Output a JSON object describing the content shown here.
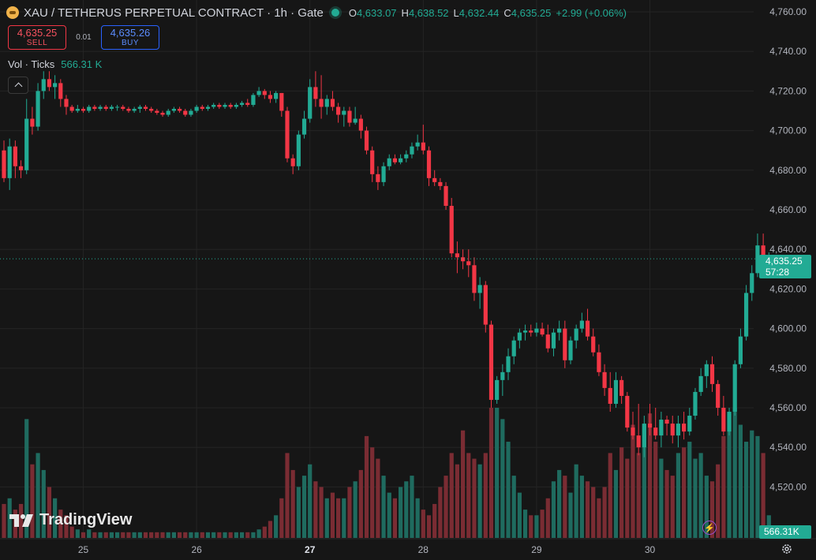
{
  "header": {
    "title": "XAU / TETHERUS PERPETUAL CONTRACT · 1h · Gate",
    "symbol_icon": "gold-coin-icon",
    "status_icon": "market-open-dot-icon",
    "ohlc": {
      "o_key": "O",
      "o": "4,633.07",
      "h_key": "H",
      "h": "4,638.52",
      "l_key": "L",
      "l": "4,632.44",
      "c_key": "C",
      "c": "4,635.25",
      "change": "+2.99 (+0.06%)"
    }
  },
  "trade": {
    "sell_price": "4,635.25",
    "sell_label": "SELL",
    "spread": "0.01",
    "buy_price": "4,635.26",
    "buy_label": "BUY"
  },
  "volume_legend": {
    "label": "Vol · Ticks",
    "value": "566.31 K"
  },
  "price_axis": {
    "current_price": "4,635.25",
    "countdown": "57:28",
    "volume_badge": "566.31K"
  },
  "watermark": "TradingView",
  "colors": {
    "up": "#22ab94",
    "down": "#f23645",
    "background": "#161616",
    "grid": "#242424"
  },
  "icons": {
    "settings": "gear-icon",
    "alerts": "lightning-icon",
    "collapse": "chevron-up-icon"
  },
  "chart_data": {
    "type": "candlestick",
    "title": "XAU / TETHERUS PERPETUAL CONTRACT · 1h · Gate",
    "ylim": [
      4505,
      4765
    ],
    "y_ticks": [
      "4,520.00",
      "4,540.00",
      "4,560.00",
      "4,580.00",
      "4,600.00",
      "4,620.00",
      "4,640.00",
      "4,660.00",
      "4,680.00",
      "4,700.00",
      "4,720.00",
      "4,740.00",
      "4,760.00"
    ],
    "y_tick_values": [
      4520,
      4540,
      4560,
      4580,
      4600,
      4620,
      4640,
      4660,
      4680,
      4700,
      4720,
      4740,
      4760
    ],
    "x_ticks": [
      {
        "label": "25",
        "index": 14,
        "bold": false
      },
      {
        "label": "26",
        "index": 34,
        "bold": false
      },
      {
        "label": "27",
        "index": 54,
        "bold": true
      },
      {
        "label": "28",
        "index": 74,
        "bold": false
      },
      {
        "label": "29",
        "index": 94,
        "bold": false
      },
      {
        "label": "30",
        "index": 114,
        "bold": false
      }
    ],
    "candles": [
      [
        4690,
        4695,
        4674,
        4676
      ],
      [
        4676,
        4696,
        4670,
        4692
      ],
      [
        4692,
        4695,
        4676,
        4682
      ],
      [
        4682,
        4685,
        4676,
        4680
      ],
      [
        4680,
        4716,
        4678,
        4706
      ],
      [
        4706,
        4712,
        4698,
        4702
      ],
      [
        4702,
        4724,
        4700,
        4720
      ],
      [
        4720,
        4730,
        4716,
        4726
      ],
      [
        4726,
        4730,
        4720,
        4722
      ],
      [
        4722,
        4728,
        4716,
        4724
      ],
      [
        4724,
        4726,
        4712,
        4716
      ],
      [
        4716,
        4718,
        4708,
        4712
      ],
      [
        4712,
        4713,
        4709,
        4710
      ],
      [
        4710,
        4713,
        4709,
        4711
      ],
      [
        4711,
        4712,
        4709,
        4710
      ],
      [
        4710,
        4713,
        4709,
        4712
      ],
      [
        4712,
        4713,
        4710,
        4711
      ],
      [
        4711,
        4713,
        4710,
        4712
      ],
      [
        4712,
        4713,
        4710,
        4711
      ],
      [
        4711,
        4713,
        4710,
        4712
      ],
      [
        4712,
        4713,
        4710,
        4712
      ],
      [
        4712,
        4713,
        4710,
        4711
      ],
      [
        4711,
        4712,
        4709,
        4710
      ],
      [
        4710,
        4712,
        4709,
        4711
      ],
      [
        4711,
        4713,
        4709,
        4712
      ],
      [
        4712,
        4713,
        4710,
        4711
      ],
      [
        4711,
        4712,
        4709,
        4710
      ],
      [
        4710,
        4711,
        4708,
        4709
      ],
      [
        4709,
        4710,
        4707,
        4708
      ],
      [
        4708,
        4711,
        4707,
        4710
      ],
      [
        4710,
        4712,
        4709,
        4711
      ],
      [
        4711,
        4712,
        4709,
        4710
      ],
      [
        4710,
        4711,
        4707,
        4708
      ],
      [
        4708,
        4711,
        4707,
        4710
      ],
      [
        4710,
        4713,
        4709,
        4712
      ],
      [
        4712,
        4713,
        4710,
        4711
      ],
      [
        4711,
        4713,
        4710,
        4712
      ],
      [
        4712,
        4714,
        4711,
        4713
      ],
      [
        4713,
        4714,
        4711,
        4712
      ],
      [
        4712,
        4714,
        4711,
        4713
      ],
      [
        4713,
        4714,
        4711,
        4712
      ],
      [
        4712,
        4714,
        4711,
        4713
      ],
      [
        4713,
        4715,
        4712,
        4714
      ],
      [
        4714,
        4716,
        4712,
        4713
      ],
      [
        4713,
        4719,
        4712,
        4718
      ],
      [
        4718,
        4722,
        4717,
        4720
      ],
      [
        4720,
        4721,
        4716,
        4718
      ],
      [
        4718,
        4720,
        4714,
        4716
      ],
      [
        4716,
        4720,
        4714,
        4719
      ],
      [
        4719,
        4719,
        4707,
        4710
      ],
      [
        4710,
        4712,
        4684,
        4686
      ],
      [
        4686,
        4688,
        4678,
        4682
      ],
      [
        4682,
        4700,
        4680,
        4698
      ],
      [
        4698,
        4710,
        4696,
        4706
      ],
      [
        4706,
        4726,
        4704,
        4722
      ],
      [
        4722,
        4730,
        4712,
        4716
      ],
      [
        4716,
        4728,
        4706,
        4712
      ],
      [
        4712,
        4718,
        4708,
        4716
      ],
      [
        4716,
        4720,
        4710,
        4712
      ],
      [
        4712,
        4714,
        4704,
        4708
      ],
      [
        4708,
        4712,
        4702,
        4710
      ],
      [
        4710,
        4712,
        4702,
        4704
      ],
      [
        4704,
        4712,
        4703,
        4706
      ],
      [
        4706,
        4708,
        4696,
        4700
      ],
      [
        4700,
        4702,
        4688,
        4690
      ],
      [
        4690,
        4692,
        4674,
        4678
      ],
      [
        4678,
        4682,
        4670,
        4674
      ],
      [
        4674,
        4684,
        4672,
        4682
      ],
      [
        4682,
        4688,
        4680,
        4686
      ],
      [
        4686,
        4688,
        4683,
        4684
      ],
      [
        4684,
        4688,
        4683,
        4686
      ],
      [
        4686,
        4690,
        4684,
        4688
      ],
      [
        4688,
        4694,
        4686,
        4692
      ],
      [
        4692,
        4698,
        4690,
        4694
      ],
      [
        4694,
        4703,
        4688,
        4690
      ],
      [
        4690,
        4692,
        4672,
        4676
      ],
      [
        4676,
        4680,
        4672,
        4674
      ],
      [
        4674,
        4676,
        4670,
        4672
      ],
      [
        4672,
        4674,
        4660,
        4662
      ],
      [
        4662,
        4666,
        4636,
        4638
      ],
      [
        4638,
        4644,
        4628,
        4636
      ],
      [
        4636,
        4640,
        4630,
        4634
      ],
      [
        4634,
        4640,
        4626,
        4632
      ],
      [
        4632,
        4636,
        4614,
        4618
      ],
      [
        4618,
        4626,
        4610,
        4622
      ],
      [
        4622,
        4624,
        4598,
        4602
      ],
      [
        4602,
        4604,
        4560,
        4564
      ],
      [
        4564,
        4576,
        4562,
        4574
      ],
      [
        4574,
        4582,
        4566,
        4578
      ],
      [
        4578,
        4590,
        4574,
        4586
      ],
      [
        4586,
        4596,
        4582,
        4594
      ],
      [
        4594,
        4600,
        4590,
        4598
      ],
      [
        4598,
        4602,
        4594,
        4599
      ],
      [
        4599,
        4602,
        4596,
        4598
      ],
      [
        4598,
        4603,
        4596,
        4600
      ],
      [
        4600,
        4603,
        4596,
        4597
      ],
      [
        4597,
        4602,
        4588,
        4590
      ],
      [
        4590,
        4600,
        4586,
        4598
      ],
      [
        4598,
        4604,
        4594,
        4600
      ],
      [
        4600,
        4604,
        4580,
        4584
      ],
      [
        4584,
        4596,
        4582,
        4594
      ],
      [
        4594,
        4602,
        4590,
        4600
      ],
      [
        4600,
        4608,
        4598,
        4604
      ],
      [
        4604,
        4610,
        4594,
        4596
      ],
      [
        4596,
        4600,
        4586,
        4588
      ],
      [
        4588,
        4592,
        4576,
        4578
      ],
      [
        4578,
        4582,
        4566,
        4570
      ],
      [
        4570,
        4578,
        4558,
        4562
      ],
      [
        4562,
        4578,
        4560,
        4574
      ],
      [
        4574,
        4576,
        4562,
        4566
      ],
      [
        4566,
        4568,
        4548,
        4550
      ],
      [
        4550,
        4558,
        4544,
        4546
      ],
      [
        4546,
        4562,
        4536,
        4540
      ],
      [
        4540,
        4556,
        4535,
        4552
      ],
      [
        4552,
        4562,
        4546,
        4550
      ],
      [
        4550,
        4560,
        4544,
        4546
      ],
      [
        4546,
        4558,
        4540,
        4554
      ],
      [
        4554,
        4556,
        4546,
        4552
      ],
      [
        4552,
        4556,
        4542,
        4546
      ],
      [
        4546,
        4556,
        4540,
        4552
      ],
      [
        4552,
        4558,
        4544,
        4548
      ],
      [
        4548,
        4560,
        4546,
        4556
      ],
      [
        4556,
        4570,
        4554,
        4568
      ],
      [
        4568,
        4580,
        4566,
        4576
      ],
      [
        4576,
        4584,
        4570,
        4582
      ],
      [
        4582,
        4586,
        4568,
        4572
      ],
      [
        4572,
        4574,
        4556,
        4560
      ],
      [
        4560,
        4566,
        4546,
        4548
      ],
      [
        4548,
        4560,
        4546,
        4558
      ],
      [
        4558,
        4584,
        4556,
        4582
      ],
      [
        4582,
        4600,
        4580,
        4596
      ],
      [
        4596,
        4622,
        4594,
        4618
      ],
      [
        4618,
        4632,
        4614,
        4628
      ],
      [
        4628,
        4648,
        4626,
        4642
      ],
      [
        4642,
        4648,
        4630,
        4632
      ],
      [
        4633.07,
        4638.52,
        4632.44,
        4635.25
      ]
    ],
    "volumes": [
      12,
      14,
      10,
      12,
      42,
      26,
      30,
      24,
      18,
      14,
      10,
      8,
      4,
      3,
      2,
      3,
      2,
      2,
      2,
      2,
      2,
      2,
      2,
      2,
      2,
      2,
      2,
      2,
      2,
      2,
      2,
      2,
      2,
      2,
      2,
      2,
      2,
      2,
      2,
      2,
      2,
      2,
      2,
      2,
      2,
      3,
      4,
      6,
      8,
      14,
      30,
      24,
      18,
      22,
      26,
      20,
      18,
      14,
      16,
      14,
      14,
      18,
      20,
      24,
      36,
      32,
      28,
      22,
      16,
      14,
      18,
      20,
      22,
      14,
      10,
      8,
      12,
      18,
      22,
      30,
      26,
      38,
      30,
      28,
      26,
      30,
      46,
      46,
      42,
      34,
      22,
      16,
      10,
      8,
      8,
      10,
      14,
      20,
      24,
      22,
      16,
      26,
      22,
      20,
      18,
      14,
      18,
      30,
      24,
      32,
      28,
      40,
      30,
      40,
      44,
      34,
      28,
      24,
      22,
      30,
      32,
      34,
      28,
      30,
      22,
      20,
      26,
      36,
      44,
      46,
      40,
      34,
      38,
      36,
      30,
      8
    ],
    "current_price": 4635.25
  }
}
